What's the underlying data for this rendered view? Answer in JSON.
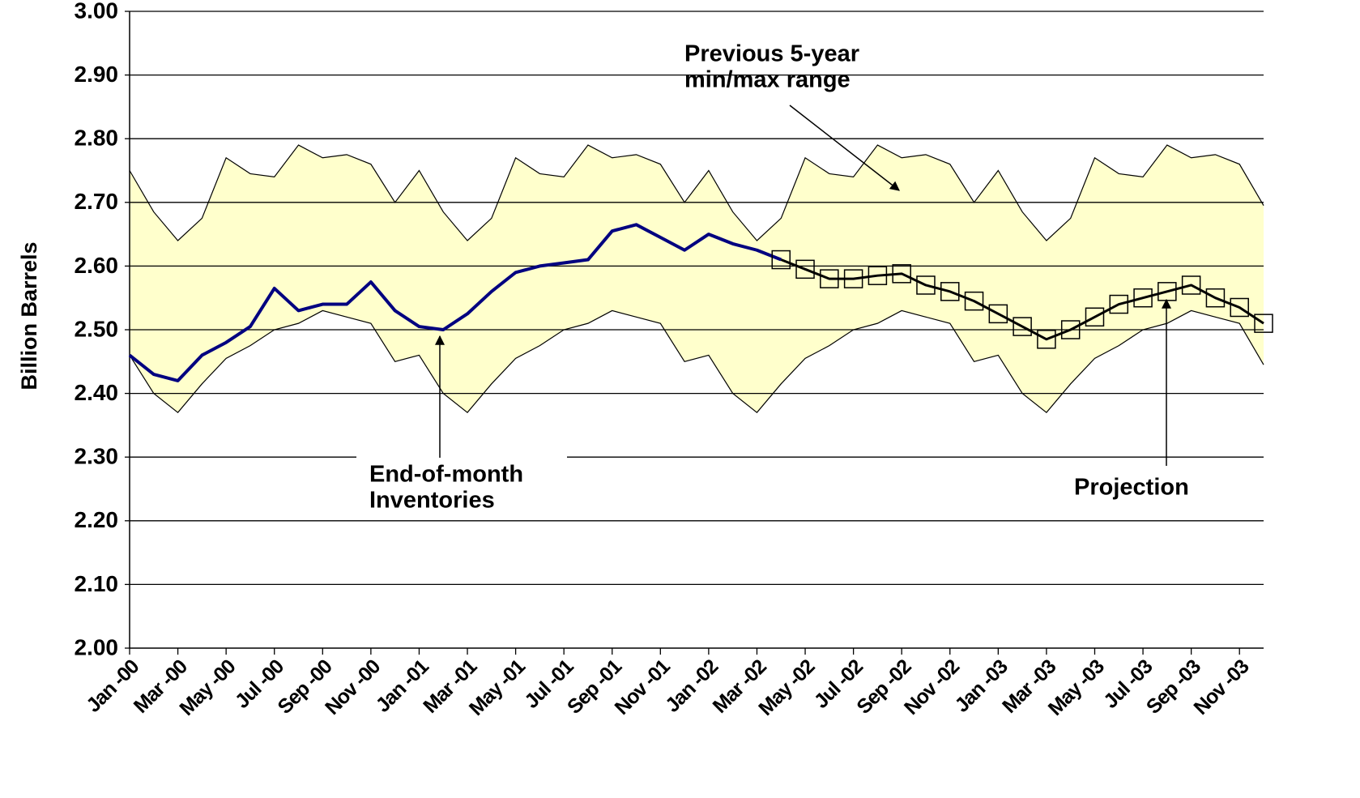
{
  "chart_data": {
    "type": "line",
    "y_label": "Billion Barrels",
    "categories": [
      "Jan -00",
      null,
      "Mar -00",
      null,
      "May -00",
      null,
      "Jul -00",
      null,
      "Sep -00",
      null,
      "Nov -00",
      null,
      "Jan -01",
      null,
      "Mar -01",
      null,
      "May -01",
      null,
      "Jul -01",
      null,
      "Sep -01",
      null,
      "Nov -01",
      null,
      "Jan -02",
      null,
      "Mar -02",
      null,
      "May -02",
      null,
      "Jul -02",
      null,
      "Sep -02",
      null,
      "Nov -02",
      null,
      "Jan -03",
      null,
      "Mar -03",
      null,
      "May -03",
      null,
      "Jul -03",
      null,
      "Sep -03",
      null,
      "Nov -03",
      null
    ],
    "band": {
      "color": "#ffffcc",
      "upper": [
        2.75,
        2.685,
        2.64,
        2.675,
        2.77,
        2.745,
        2.74,
        2.79,
        2.77,
        2.775,
        2.76,
        2.7,
        2.75,
        2.685,
        2.64,
        2.675,
        2.77,
        2.745,
        2.74,
        2.79,
        2.77,
        2.775,
        2.76,
        2.7,
        2.75,
        2.685,
        2.64,
        2.675,
        2.77,
        2.745,
        2.74,
        2.79,
        2.77,
        2.775,
        2.76,
        2.7,
        2.75,
        2.685,
        2.64,
        2.675,
        2.77,
        2.745,
        2.74,
        2.79,
        2.77,
        2.775,
        2.76,
        2.695
      ],
      "lower": [
        2.46,
        2.4,
        2.37,
        2.415,
        2.455,
        2.475,
        2.5,
        2.51,
        2.53,
        2.52,
        2.51,
        2.45,
        2.46,
        2.4,
        2.37,
        2.415,
        2.455,
        2.475,
        2.5,
        2.51,
        2.53,
        2.52,
        2.51,
        2.45,
        2.46,
        2.4,
        2.37,
        2.415,
        2.455,
        2.475,
        2.5,
        2.51,
        2.53,
        2.52,
        2.51,
        2.45,
        2.46,
        2.4,
        2.37,
        2.415,
        2.455,
        2.475,
        2.5,
        2.51,
        2.53,
        2.52,
        2.51,
        2.445
      ]
    },
    "series": [
      {
        "color": "#000080",
        "marker": false,
        "values": [
          2.46,
          2.43,
          2.42,
          2.46,
          2.48,
          2.505,
          2.565,
          2.53,
          2.54,
          2.54,
          2.575,
          2.53,
          2.505,
          2.5,
          2.525,
          2.56,
          2.59,
          2.6,
          2.605,
          2.61,
          2.655,
          2.665,
          2.645,
          2.625,
          2.65,
          2.635,
          2.625,
          2.61,
          null,
          null,
          null,
          null,
          null,
          null,
          null,
          null,
          null,
          null,
          null,
          null,
          null,
          null,
          null,
          null,
          null,
          null,
          null,
          null
        ]
      },
      {
        "color": "#000000",
        "marker": true,
        "values": [
          null,
          null,
          null,
          null,
          null,
          null,
          null,
          null,
          null,
          null,
          null,
          null,
          null,
          null,
          null,
          null,
          null,
          null,
          null,
          null,
          null,
          null,
          null,
          null,
          null,
          null,
          null,
          2.61,
          2.595,
          2.58,
          2.58,
          2.585,
          2.588,
          2.57,
          2.56,
          2.545,
          2.525,
          2.505,
          2.485,
          2.5,
          2.52,
          2.54,
          2.55,
          2.56,
          2.57,
          2.55,
          2.535,
          2.51
        ]
      }
    ],
    "ylim": [
      2.0,
      3.0
    ],
    "yticks": [
      {
        "value": 2.0,
        "label": "2.00"
      },
      {
        "value": 2.1,
        "label": "2.10"
      },
      {
        "value": 2.2,
        "label": "2.20"
      },
      {
        "value": 2.3,
        "label": "2.30"
      },
      {
        "value": 2.4,
        "label": "2.40"
      },
      {
        "value": 2.5,
        "label": "2.50"
      },
      {
        "value": 2.6,
        "label": "2.60"
      },
      {
        "value": 2.7,
        "label": "2.70"
      },
      {
        "value": 2.8,
        "label": "2.80"
      },
      {
        "value": 2.9,
        "label": "2.90"
      },
      {
        "value": 3.0,
        "label": "3.00"
      }
    ],
    "grid": true,
    "annotations": [
      {
        "lines": [
          "Previous 5-year",
          "min/max range"
        ]
      },
      {
        "lines": [
          "End-of-month",
          "Inventories"
        ]
      },
      {
        "lines": [
          "Projection"
        ]
      }
    ]
  }
}
